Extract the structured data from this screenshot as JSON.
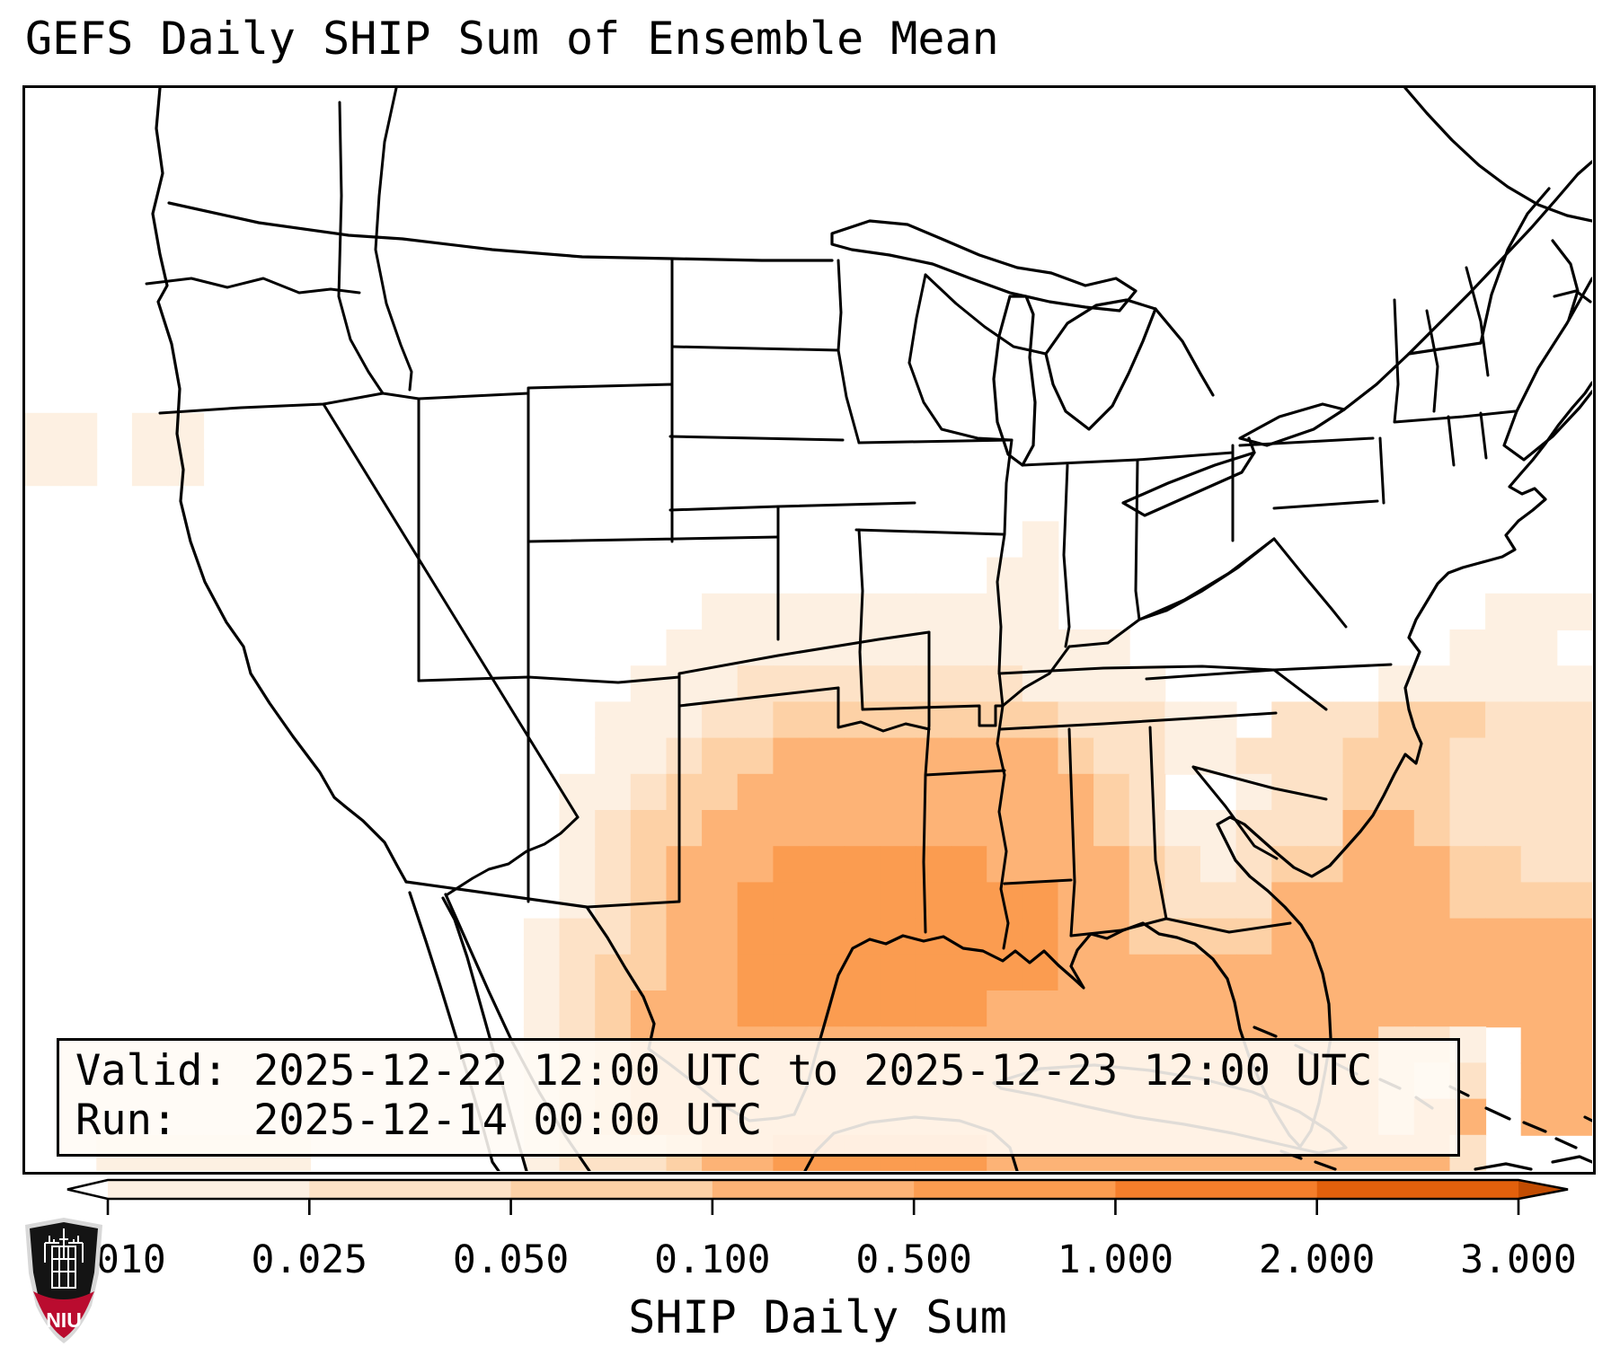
{
  "title": "GEFS Daily SHIP Sum of Ensemble Mean",
  "info_box": {
    "line1": "Valid: 2025-12-22 12:00 UTC to 2025-12-23 12:00 UTC",
    "line2": "Run:   2025-12-14 00:00 UTC"
  },
  "colorbar": {
    "label": "SHIP Daily Sum",
    "tick_labels": [
      "0.010",
      "0.025",
      "0.050",
      "0.100",
      "0.500",
      "1.000",
      "2.000",
      "3.000"
    ],
    "segment_colors": [
      "#fdf0e2",
      "#fde2c7",
      "#fdd1a6",
      "#fdb376",
      "#fb9c50",
      "#f57e2b",
      "#e2600c"
    ],
    "under_color": "#ffffff",
    "over_color": "#c24c02",
    "frame_color": "#000000"
  },
  "logo": {
    "text": "NIU",
    "red": "#BA0C2F",
    "black": "#141414",
    "outline": "#d8d8d8",
    "white": "#ffffff"
  },
  "chart_data": {
    "type": "heatmap",
    "title": "GEFS Daily SHIP Sum of Ensemble Mean",
    "legend_label": "SHIP Daily Sum",
    "levels": [
      0.01,
      0.025,
      0.05,
      0.1,
      0.5,
      1.0,
      2.0,
      3.0
    ],
    "palette": {
      "1": "#fdf0e2",
      "2": "#fde2c7",
      "3": "#fdd1a6",
      "4": "#fdb376",
      "5": "#fb9c50"
    },
    "grid_cols": 44,
    "grid_rows_count": 30,
    "grid": [
      "00000000000000000000000000000000000000000000",
      "00000000000000000000000000000000000000000000",
      "00000000000000000000000000000000000000000000",
      "00000000000000000000000000000000000000000000",
      "00000000000000000000000000000000000000000000",
      "00000000000000000000000000000000000000000000",
      "00000000000000000000000000000000000000000000",
      "00000000000000000000000000000000000000000000",
      "00000000000000000000000000000000000000000000",
      "11011000000000000000000000000000000000000000",
      "11011000000000000000000000000000000000000000",
      "00000000000000000000000000000000000000000000",
      "00000000000000000000000000001000000000000000",
      "00000000000000000000000000011000000000000000",
      "00000000000000000001111111111000000000000111",
      "00000000000000000011111111111110000000001110",
      "00000000000000000111222222221111000000111111",
      "00000000000000001112233333333222110222333222",
      "00000000000000001123344444444322112223332222",
      "00000000000000011233444444444432001223332222",
      "00000000000000012334444444444432112224432222",
      "00000000000000012344455555544443212334443322",
      "00000000000000012344555555555443222444443333",
      "00000000000000122344555555555443333444444444",
      "00000000000000123344555555555444444444444444",
      "00000000000000123444555555544444444444444444",
      "00000000000000123444444444444444444444221 44",
      "00000000000000123444444444444444444444212 44",
      "00000000000000123444444444444444444444244 44",
      "00111111000000122234455555544444444444442 00"
    ],
    "notes": "Discretized shading levels 0-5 read from map; maximum (0.5-1.0 band) over western Gulf of Mexico south of Louisiana/Texas coast and near Yucatan; broad 0.1-0.5 band over east Texas, Louisiana, lower Mississippi valley, Bahamas and Caribbean; light values over Atlantic off Southeast coast, central plains fringe and two small spots in northern California."
  }
}
